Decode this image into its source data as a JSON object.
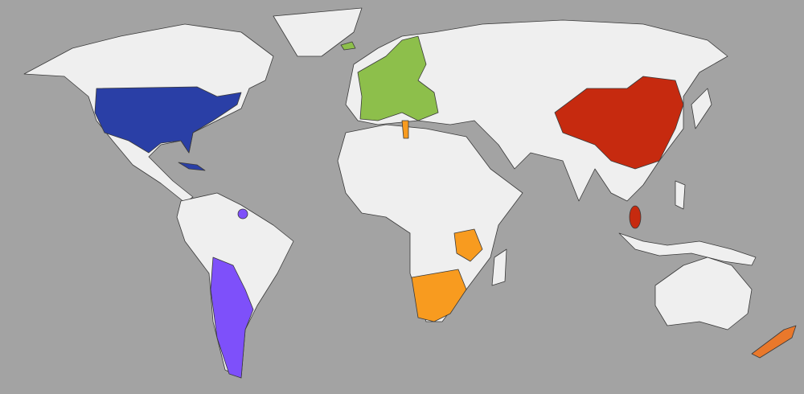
{
  "map": {
    "type": "world-choropleth",
    "colors": {
      "ocean": "#a3a3a3",
      "land": "#efefef",
      "border": "#3a3a3a"
    },
    "highlight_groups": [
      {
        "id": "blue",
        "color": "#2a3fa6"
      },
      {
        "id": "green",
        "color": "#8dbf4b"
      },
      {
        "id": "red",
        "color": "#c62a0f"
      },
      {
        "id": "purple",
        "color": "#7e50fa"
      },
      {
        "id": "orange",
        "color": "#f89b1f"
      },
      {
        "id": "dark-orange",
        "color": "#e9782b"
      }
    ]
  }
}
